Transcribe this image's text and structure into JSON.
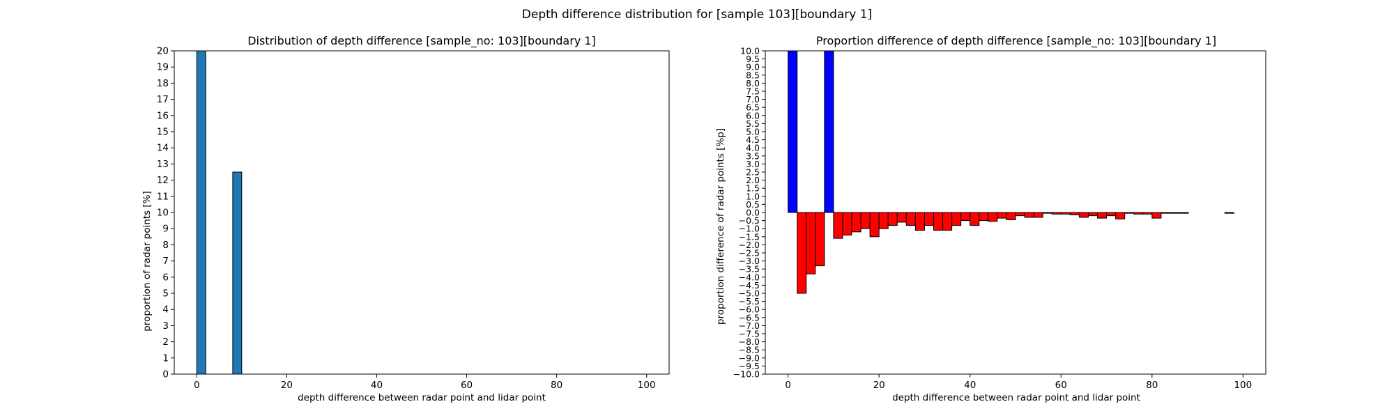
{
  "figure_title": "Depth difference distribution for [sample 103][boundary 1]",
  "colors": {
    "left_bars": "#1f77b4",
    "positive_bars": "#0000ff",
    "negative_bars": "#ff0000",
    "edge": "#000000"
  },
  "chart_data": [
    {
      "type": "bar",
      "title": "Distribution of depth difference [sample_no: 103][boundary 1]",
      "xlabel": "depth difference between radar point and lidar point",
      "ylabel": "proportion of radar points [%]",
      "xlim": [
        -5,
        105
      ],
      "ylim": [
        0,
        20
      ],
      "xticks": [
        0,
        20,
        40,
        60,
        80,
        100
      ],
      "yticks": [
        0,
        1,
        2,
        3,
        4,
        5,
        6,
        7,
        8,
        9,
        10,
        11,
        12,
        13,
        14,
        15,
        16,
        17,
        18,
        19,
        20
      ],
      "bin_width": 2,
      "x": [
        1,
        9
      ],
      "values": [
        20,
        12.5
      ],
      "grid": false
    },
    {
      "type": "bar",
      "title": "Proportion difference of depth difference [sample_no: 103][boundary 1]",
      "xlabel": "depth difference between radar point and lidar point",
      "ylabel": "proportion difference of radar points [%p]",
      "xlim": [
        -5,
        105
      ],
      "ylim": [
        -10,
        10
      ],
      "xticks": [
        0,
        20,
        40,
        60,
        80,
        100
      ],
      "yticks": [
        -10.0,
        -9.5,
        -9.0,
        -8.5,
        -8.0,
        -7.5,
        -7.0,
        -6.5,
        -6.0,
        -5.5,
        -5.0,
        -4.5,
        -4.0,
        -3.5,
        -3.0,
        -2.5,
        -2.0,
        -1.5,
        -1.0,
        -0.5,
        0.0,
        0.5,
        1.0,
        1.5,
        2.0,
        2.5,
        3.0,
        3.5,
        4.0,
        4.5,
        5.0,
        5.5,
        6.0,
        6.5,
        7.0,
        7.5,
        8.0,
        8.5,
        9.0,
        9.5,
        10.0
      ],
      "bin_width": 2,
      "x": [
        1,
        3,
        5,
        7,
        9,
        11,
        13,
        15,
        17,
        19,
        21,
        23,
        25,
        27,
        29,
        31,
        33,
        35,
        37,
        39,
        41,
        43,
        45,
        47,
        49,
        51,
        53,
        55,
        57,
        59,
        61,
        63,
        65,
        67,
        69,
        71,
        73,
        75,
        77,
        79,
        81,
        83,
        85,
        87,
        89,
        91,
        93,
        95,
        97,
        99
      ],
      "values": [
        10,
        -5.0,
        -3.8,
        -3.3,
        10,
        -1.6,
        -1.4,
        -1.2,
        -1.0,
        -1.5,
        -1.0,
        -0.8,
        -0.6,
        -0.8,
        -1.1,
        -0.8,
        -1.1,
        -1.1,
        -0.8,
        -0.5,
        -0.8,
        -0.5,
        -0.55,
        -0.35,
        -0.45,
        -0.2,
        -0.3,
        -0.3,
        -0.05,
        -0.1,
        -0.1,
        -0.15,
        -0.3,
        -0.2,
        -0.35,
        -0.2,
        -0.4,
        -0.05,
        -0.1,
        -0.1,
        -0.35,
        -0.05,
        -0.05,
        -0.05,
        0,
        0,
        0,
        0,
        -0.05,
        0
      ],
      "grid": false
    }
  ]
}
